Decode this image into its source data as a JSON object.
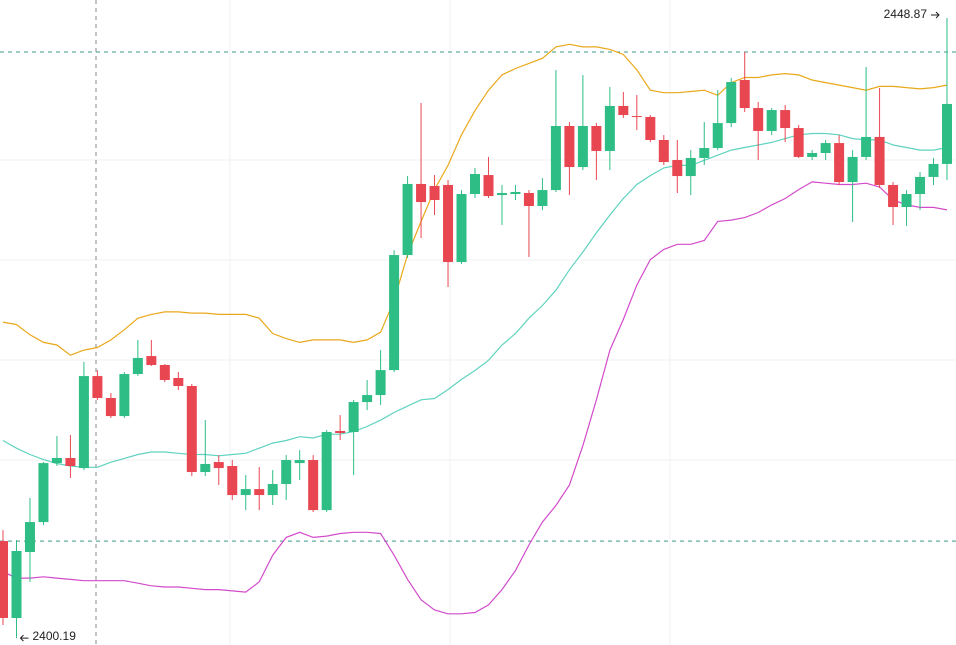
{
  "chart_data": {
    "type": "candlestick",
    "open": [
      2407.81,
      2401.77,
      2406.95,
      2409.3,
      2413.93,
      2414.33,
      2413.54,
      2420.76,
      2419.04,
      2417.62,
      2420.92,
      2422.33,
      2421.63,
      2420.61,
      2419.98,
      2413.23,
      2414.01,
      2413.7,
      2411.42,
      2411.89,
      2411.42,
      2412.29,
      2413.93,
      2414.17,
      2410.24,
      2416.45,
      2416.37,
      2418.72,
      2419.27,
      2421.23,
      2430.26,
      2435.84,
      2435.68,
      2435.76,
      2429.71,
      2435.05,
      2436.54,
      2434.97,
      2435.05,
      2435.13,
      2434.11,
      2435.36,
      2440.39,
      2437.17,
      2440.39,
      2438.43,
      2441.96,
      2441.17,
      2441.1,
      2439.29,
      2437.72,
      2436.46,
      2437.88,
      2438.66,
      2440.62,
      2444.0,
      2441.8,
      2440.0,
      2441.64,
      2440.23,
      2437.96,
      2438.27,
      2439.05,
      2435.99,
      2437.96,
      2439.53,
      2435.76,
      2434.03,
      2435.05,
      2436.39,
      2437.41
    ],
    "high": [
      2408.67,
      2407.89,
      2411.19,
      2414.01,
      2416.05,
      2416.13,
      2421.86,
      2421.23,
      2419.43,
      2421.08,
      2423.59,
      2423.59,
      2421.71,
      2421.08,
      2420.14,
      2417.31,
      2414.56,
      2414.17,
      2412.99,
      2413.62,
      2413.38,
      2414.56,
      2414.95,
      2414.56,
      2416.52,
      2417.7,
      2418.88,
      2420.45,
      2422.8,
      2430.65,
      2436.46,
      2442.19,
      2436.54,
      2436.15,
      2435.36,
      2437.09,
      2437.96,
      2435.76,
      2435.76,
      2435.36,
      2436.31,
      2444.78,
      2440.7,
      2444.39,
      2440.62,
      2443.45,
      2443.06,
      2442.82,
      2441.25,
      2439.68,
      2439.29,
      2438.5,
      2440.7,
      2443.21,
      2444.16,
      2446.2,
      2442.27,
      2441.8,
      2442.04,
      2440.47,
      2438.5,
      2439.29,
      2439.68,
      2438.5,
      2445.02,
      2443.37,
      2435.99,
      2435.36,
      2436.78,
      2437.88,
      2448.87
    ],
    "low": [
      2401.22,
      2400.19,
      2404.59,
      2409.07,
      2413.7,
      2412.76,
      2413.38,
      2418.88,
      2417.47,
      2417.47,
      2420.76,
      2421.55,
      2420.29,
      2419.66,
      2412.91,
      2412.91,
      2412.21,
      2411.03,
      2410.24,
      2410.24,
      2410.64,
      2411.03,
      2412.6,
      2410.09,
      2410.09,
      2415.74,
      2412.99,
      2418.09,
      2418.49,
      2421.08,
      2430.03,
      2431.6,
      2433.4,
      2427.75,
      2429.56,
      2434.74,
      2434.74,
      2432.62,
      2434.58,
      2430.11,
      2433.79,
      2435.21,
      2434.97,
      2436.93,
      2436.15,
      2436.93,
      2441.02,
      2440.07,
      2439.13,
      2437.33,
      2435.13,
      2434.97,
      2437.33,
      2438.5,
      2440.31,
      2441.49,
      2437.72,
      2439.68,
      2439.13,
      2437.88,
      2437.72,
      2437.72,
      2435.76,
      2432.85,
      2437.72,
      2435.52,
      2432.62,
      2432.54,
      2433.79,
      2435.76,
      2436.15
    ],
    "close": [
      2401.77,
      2407.03,
      2409.3,
      2413.93,
      2414.33,
      2413.7,
      2420.76,
      2419.04,
      2417.62,
      2420.92,
      2422.18,
      2421.63,
      2420.45,
      2419.98,
      2413.23,
      2413.86,
      2413.54,
      2411.42,
      2411.89,
      2411.42,
      2412.29,
      2414.17,
      2414.17,
      2410.24,
      2416.37,
      2416.29,
      2418.72,
      2419.27,
      2421.23,
      2430.26,
      2435.84,
      2434.42,
      2434.58,
      2429.71,
      2435.05,
      2436.62,
      2434.89,
      2435.13,
      2435.21,
      2434.11,
      2435.36,
      2440.39,
      2437.17,
      2440.39,
      2438.43,
      2441.96,
      2441.25,
      2441.1,
      2439.29,
      2437.56,
      2436.46,
      2437.88,
      2438.66,
      2440.62,
      2443.84,
      2441.8,
      2440.0,
      2441.64,
      2440.23,
      2437.96,
      2438.27,
      2439.05,
      2435.99,
      2437.96,
      2439.53,
      2435.76,
      2434.03,
      2435.05,
      2436.39,
      2437.41,
      2442.12
    ],
    "up_color": "#2ebd85",
    "down_color": "#e84752",
    "series": [
      {
        "color": "#e9a81c",
        "values": [
          2425.0,
          2424.8,
          2424.0,
          2423.4,
          2423.2,
          2422.4,
          2422.8,
          2423.0,
          2423.6,
          2424.4,
          2425.3,
          2425.6,
          2425.8,
          2425.8,
          2425.7,
          2425.7,
          2425.6,
          2425.6,
          2425.6,
          2425.3,
          2424.1,
          2423.7,
          2423.4,
          2423.6,
          2423.6,
          2423.6,
          2423.4,
          2423.6,
          2424.2,
          2426.7,
          2430.3,
          2432.9,
          2435.4,
          2437.3,
          2439.7,
          2441.6,
          2443.2,
          2444.4,
          2444.9,
          2445.3,
          2445.7,
          2446.6,
          2446.8,
          2446.6,
          2446.6,
          2446.4,
          2446.0,
          2444.8,
          2443.2,
          2443.0,
          2443.0,
          2443.1,
          2443.2,
          2442.8,
          2443.8,
          2444.2,
          2444.2,
          2444.4,
          2444.5,
          2444.4,
          2444.0,
          2443.8,
          2443.6,
          2443.4,
          2443.2,
          2443.5,
          2443.5,
          2443.4,
          2443.3,
          2443.4,
          2443.6
        ]
      },
      {
        "color": "#5fd3bf",
        "values": [
          2415.7,
          2415.1,
          2414.6,
          2414.2,
          2413.9,
          2413.7,
          2413.6,
          2413.6,
          2414.0,
          2414.3,
          2414.6,
          2414.8,
          2414.8,
          2414.7,
          2414.6,
          2414.6,
          2414.5,
          2414.6,
          2414.7,
          2415.1,
          2415.5,
          2415.7,
          2416.0,
          2415.9,
          2416.2,
          2416.2,
          2416.4,
          2416.8,
          2417.3,
          2417.9,
          2418.4,
          2418.9,
          2419.0,
          2419.7,
          2420.5,
          2421.2,
          2422.0,
          2423.2,
          2424.1,
          2425.3,
          2426.3,
          2427.5,
          2429.1,
          2430.5,
          2432.0,
          2433.4,
          2434.7,
          2435.8,
          2436.5,
          2437.1,
          2437.3,
          2437.3,
          2437.7,
          2438.1,
          2438.5,
          2438.7,
          2438.9,
          2439.1,
          2439.4,
          2439.7,
          2439.8,
          2439.8,
          2439.7,
          2439.4,
          2439.3,
          2439.3,
          2438.9,
          2438.7,
          2438.5,
          2438.5,
          2438.7
        ]
      },
      {
        "color": "#d34bcb",
        "values": [
          2405.4,
          2404.9,
          2404.9,
          2405.0,
          2404.9,
          2404.8,
          2404.7,
          2404.7,
          2404.7,
          2404.7,
          2404.5,
          2404.3,
          2404.2,
          2404.2,
          2404.1,
          2404.0,
          2404.0,
          2403.9,
          2403.8,
          2404.6,
          2406.7,
          2408.1,
          2408.5,
          2408.1,
          2408.2,
          2408.4,
          2408.5,
          2408.5,
          2408.4,
          2406.7,
          2404.8,
          2403.2,
          2402.4,
          2402.1,
          2402.1,
          2402.2,
          2402.8,
          2404.0,
          2405.5,
          2407.5,
          2409.3,
          2410.6,
          2412.2,
          2415.3,
          2418.9,
          2422.8,
          2425.2,
          2427.9,
          2429.9,
          2430.7,
          2431.1,
          2431.1,
          2431.4,
          2432.9,
          2433.0,
          2433.2,
          2433.6,
          2434.2,
          2434.7,
          2435.4,
          2436.0,
          2435.9,
          2435.8,
          2435.8,
          2435.9,
          2435.6,
          2434.6,
          2434.2,
          2434.0,
          2434.0,
          2433.8
        ]
      }
    ],
    "price_lines": [
      2446.2,
      2407.8
    ],
    "annotations": [
      {
        "label": "2448.87",
        "value": 2448.87
      },
      {
        "label": "2400.19",
        "value": 2400.19
      }
    ],
    "ylim": [
      2399.65,
      2450.28
    ]
  }
}
